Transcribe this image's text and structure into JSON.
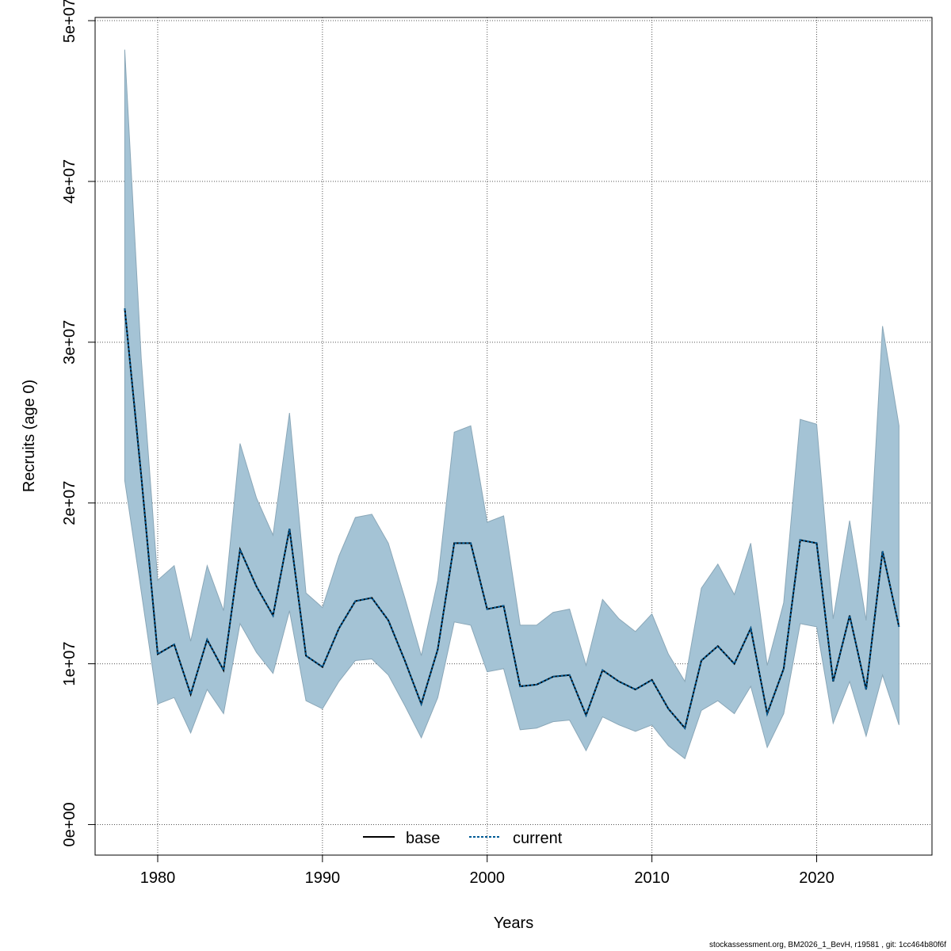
{
  "chart_data": {
    "type": "area",
    "title": "",
    "xlabel": "Years",
    "ylabel": "Recruits (age 0)",
    "xlim": [
      1976.2,
      2027.0
    ],
    "ylim": [
      -1900000,
      50200000
    ],
    "x_ticks": [
      1980,
      1990,
      2000,
      2010,
      2020
    ],
    "x_tick_labels": [
      "1980",
      "1990",
      "2000",
      "2010",
      "2020"
    ],
    "y_ticks": [
      0,
      10000000,
      20000000,
      30000000,
      40000000,
      50000000
    ],
    "y_tick_labels": [
      "0e+00",
      "1e+07",
      "2e+07",
      "3e+07",
      "4e+07",
      "5e+07"
    ],
    "grid": true,
    "x": [
      1978,
      1979,
      1980,
      1981,
      1982,
      1983,
      1984,
      1985,
      1986,
      1987,
      1988,
      1989,
      1990,
      1991,
      1992,
      1993,
      1994,
      1995,
      1996,
      1997,
      1998,
      1999,
      2000,
      2001,
      2002,
      2003,
      2004,
      2005,
      2006,
      2007,
      2008,
      2009,
      2010,
      2011,
      2012,
      2013,
      2014,
      2015,
      2016,
      2017,
      2018,
      2019,
      2020,
      2021,
      2022,
      2023,
      2024,
      2025
    ],
    "band": {
      "name": "confidence interval",
      "color": "#a4c3d5",
      "lower": [
        21400000,
        14500000,
        7500000,
        7900000,
        5700000,
        8400000,
        6900000,
        12500000,
        10700000,
        9400000,
        13300000,
        7700000,
        7200000,
        8900000,
        10200000,
        10300000,
        9300000,
        7400000,
        5400000,
        7900000,
        12600000,
        12400000,
        9500000,
        9700000,
        5900000,
        6000000,
        6400000,
        6500000,
        4600000,
        6700000,
        6200000,
        5800000,
        6200000,
        4900000,
        4100000,
        7100000,
        7700000,
        6900000,
        8600000,
        4800000,
        6900000,
        12500000,
        12300000,
        6300000,
        8900000,
        5500000,
        9300000,
        6200000
      ],
      "upper": [
        48200000,
        29000000,
        15200000,
        16100000,
        11400000,
        16100000,
        13300000,
        23700000,
        20300000,
        18000000,
        25600000,
        14400000,
        13500000,
        16700000,
        19100000,
        19300000,
        17500000,
        14100000,
        10500000,
        15200000,
        24400000,
        24800000,
        18800000,
        19200000,
        12400000,
        12400000,
        13200000,
        13400000,
        9900000,
        14000000,
        12800000,
        12000000,
        13100000,
        10600000,
        8900000,
        14700000,
        16200000,
        14300000,
        17500000,
        9900000,
        13800000,
        25200000,
        24900000,
        12800000,
        18900000,
        12700000,
        31000000,
        24800000
      ]
    },
    "series": [
      {
        "name": "base",
        "color": "#000000",
        "style": "solid",
        "values": [
          32100000,
          21700000,
          10600000,
          11200000,
          8100000,
          11500000,
          9600000,
          17100000,
          14800000,
          13000000,
          18400000,
          10500000,
          9800000,
          12200000,
          13900000,
          14100000,
          12700000,
          10200000,
          7500000,
          10900000,
          17500000,
          17500000,
          13400000,
          13600000,
          8600000,
          8700000,
          9200000,
          9300000,
          6800000,
          9600000,
          8900000,
          8400000,
          9000000,
          7200000,
          6000000,
          10200000,
          11100000,
          10000000,
          12200000,
          6900000,
          9700000,
          17700000,
          17500000,
          8900000,
          13000000,
          8400000,
          17000000,
          12300000
        ]
      },
      {
        "name": "current",
        "color": "#005b96",
        "style": "dashed",
        "values": [
          32100000,
          21700000,
          10600000,
          11200000,
          8100000,
          11500000,
          9600000,
          17100000,
          14800000,
          13000000,
          18400000,
          10500000,
          9800000,
          12200000,
          13900000,
          14100000,
          12700000,
          10200000,
          7500000,
          10900000,
          17500000,
          17500000,
          13400000,
          13600000,
          8600000,
          8700000,
          9200000,
          9300000,
          6800000,
          9600000,
          8900000,
          8400000,
          9000000,
          7200000,
          6000000,
          10200000,
          11100000,
          10000000,
          12200000,
          6900000,
          9700000,
          17700000,
          17500000,
          8900000,
          13000000,
          8400000,
          17000000,
          12300000
        ]
      }
    ],
    "legend": {
      "placement": "bottom-center",
      "entries": [
        {
          "label": "base",
          "color": "#000000",
          "style": "solid"
        },
        {
          "label": "current",
          "color": "#005b96",
          "style": "dashed"
        }
      ]
    }
  },
  "footer": {
    "text": "stockassessment.org, BM2026_1_BevH, r19581 , git: 1cc464b80f6f"
  }
}
